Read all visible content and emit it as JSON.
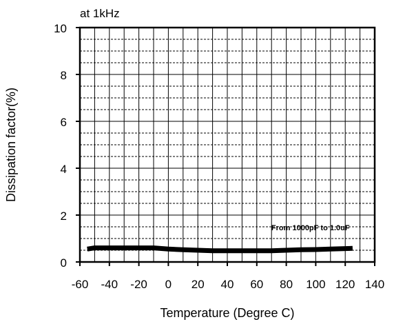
{
  "chart_data": {
    "type": "line",
    "title": "at 1kHz",
    "xlabel": "Temperature (Degree C)",
    "ylabel": "Dissipation factor(%)",
    "xlim": [
      -60,
      140
    ],
    "ylim": [
      0,
      10
    ],
    "x_ticks": [
      -60,
      -40,
      -20,
      0,
      20,
      40,
      60,
      80,
      100,
      120,
      140
    ],
    "y_ticks": [
      0,
      2,
      4,
      6,
      8,
      10
    ],
    "x_tick_labels": [
      "-60",
      "-40",
      "-20",
      "0",
      "20",
      "40",
      "60",
      "80",
      "100",
      "120",
      "140"
    ],
    "y_tick_labels": [
      "0",
      "2",
      "4",
      "6",
      "8",
      "10"
    ],
    "grid": true,
    "series": [
      {
        "name": "From 1000pF to 1.0uF",
        "color": "#000000",
        "x": [
          -55,
          -50,
          -40,
          -30,
          -20,
          -10,
          0,
          10,
          20,
          30,
          40,
          50,
          60,
          70,
          80,
          90,
          100,
          110,
          120,
          125
        ],
        "y": [
          0.55,
          0.6,
          0.6,
          0.6,
          0.6,
          0.6,
          0.55,
          0.52,
          0.5,
          0.48,
          0.48,
          0.48,
          0.48,
          0.48,
          0.5,
          0.52,
          0.53,
          0.55,
          0.57,
          0.58
        ]
      }
    ],
    "annotations": [
      {
        "text": "From 1000pF to 1.0uF",
        "x": 123,
        "y": 1.35
      }
    ]
  }
}
